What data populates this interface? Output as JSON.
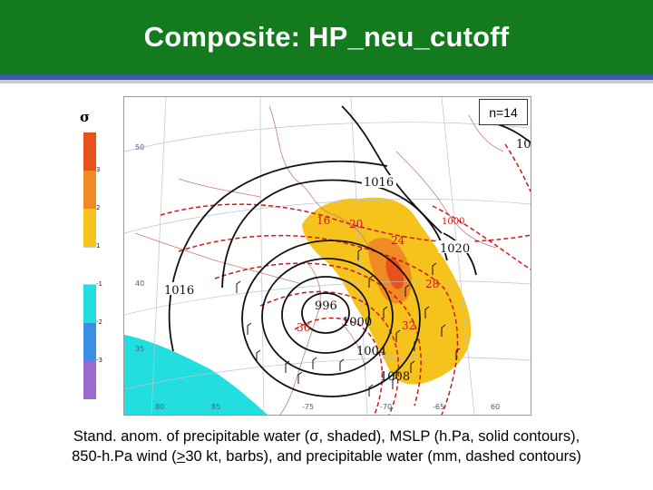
{
  "header": {
    "title": "Composite: HP_neu_cutoff",
    "background_color": "#137a1e",
    "rule_color": "#3f5aa8"
  },
  "scale": {
    "symbol": "σ",
    "ticks": [
      "3",
      "2",
      "1",
      "-1",
      "-2",
      "-3"
    ],
    "colors": [
      "#e8501c",
      "#f08a24",
      "#f6c21c",
      "#ffffff",
      "#22dede",
      "#3a8ee6",
      "#9a6ad0"
    ]
  },
  "map": {
    "count_label": "n=14",
    "mslp_labels": [
      "1016",
      "1020",
      "1016",
      "1000",
      "996",
      "1008",
      "1004",
      "1000",
      "10"
    ],
    "pw_labels": [
      "16",
      "20",
      "24",
      "28",
      "32",
      "36"
    ],
    "lat_labels": [
      "50",
      "40",
      "35",
      "80",
      "85"
    ],
    "lon_labels": [
      "-75",
      "-70",
      "-65",
      "60"
    ],
    "shading_colors": {
      "positive_1": "#f6c21c",
      "positive_2": "#f08a24",
      "negative_1": "#22dede",
      "mslp": "#000000",
      "pw": "#cc1a1a"
    }
  },
  "caption": {
    "line1": "Stand. anom. of precipitable water (σ, shaded), MSLP (h.Pa, solid contours),",
    "line2_pre": "850-h.Pa wind (",
    "line2_ul": ">",
    "line2_post": "30 kt, barbs), and precipitable water (mm, dashed contours)"
  }
}
